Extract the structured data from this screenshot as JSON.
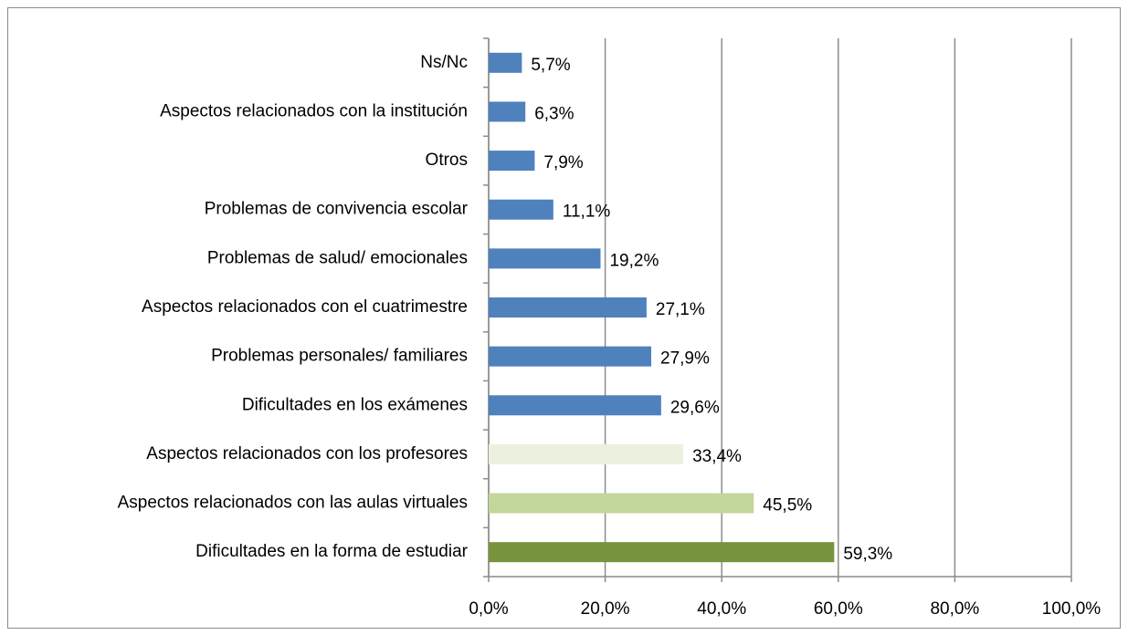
{
  "chart_data": {
    "type": "bar",
    "orientation": "horizontal",
    "categories": [
      "Ns/Nc",
      "Aspectos relacionados con la institución",
      "Otros",
      "Problemas de convivencia escolar",
      "Problemas de salud/ emocionales",
      "Aspectos relacionados con el cuatrimestre",
      "Problemas personales/ familiares",
      "Dificultades en los exámenes",
      "Aspectos relacionados con los profesores",
      "Aspectos relacionados con las aulas virtuales",
      "Dificultades en la forma de estudiar"
    ],
    "values": [
      5.7,
      6.3,
      7.9,
      11.1,
      19.2,
      27.1,
      27.9,
      29.6,
      33.4,
      45.5,
      59.3
    ],
    "value_labels": [
      "5,7%",
      "6,3%",
      "7,9%",
      "11,1%",
      "19,2%",
      "27,1%",
      "27,9%",
      "29,6%",
      "33,4%",
      "45,5%",
      "59,3%"
    ],
    "colors": [
      "#4f81bd",
      "#4f81bd",
      "#4f81bd",
      "#4f81bd",
      "#4f81bd",
      "#4f81bd",
      "#4f81bd",
      "#4f81bd",
      "#ebf1de",
      "#c3d69b",
      "#77933c"
    ],
    "xlim": [
      0,
      100
    ],
    "xticks": [
      {
        "value": 0,
        "label": "0,0%"
      },
      {
        "value": 20,
        "label": "20,0%"
      },
      {
        "value": 40,
        "label": "40,0%"
      },
      {
        "value": 60,
        "label": "60,0%"
      },
      {
        "value": 80,
        "label": "80,0%"
      },
      {
        "value": 100,
        "label": "100,0%"
      }
    ],
    "grid": true
  }
}
